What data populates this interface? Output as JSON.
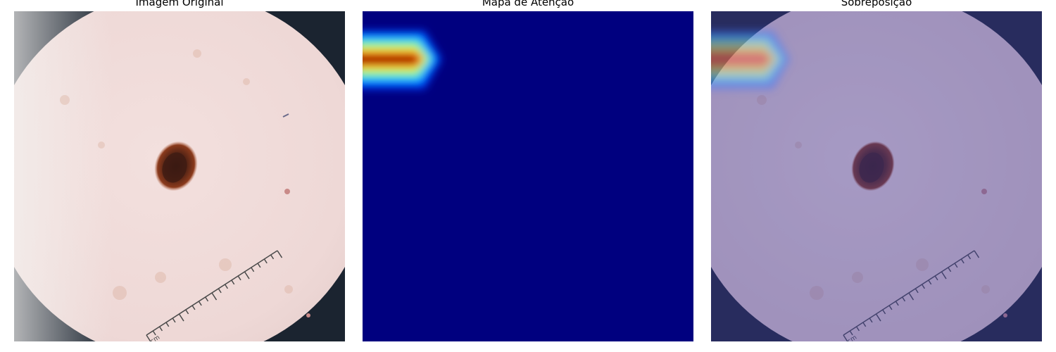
{
  "panels": [
    {
      "title": "Imagem Original"
    },
    {
      "title": "Mapa de Atenção"
    },
    {
      "title": "Sobreposição"
    }
  ],
  "ruler": {
    "label": "cm"
  },
  "colors": {
    "background_dark": "#1b2430",
    "skin": "#f2dedd",
    "lesion_dark": "#3a1a12",
    "lesion_edge": "#8a3a1c",
    "heatmap_base": "#00007f",
    "heatmap_hot": "#7f0000",
    "overlay_tint": "#5a56a8"
  }
}
